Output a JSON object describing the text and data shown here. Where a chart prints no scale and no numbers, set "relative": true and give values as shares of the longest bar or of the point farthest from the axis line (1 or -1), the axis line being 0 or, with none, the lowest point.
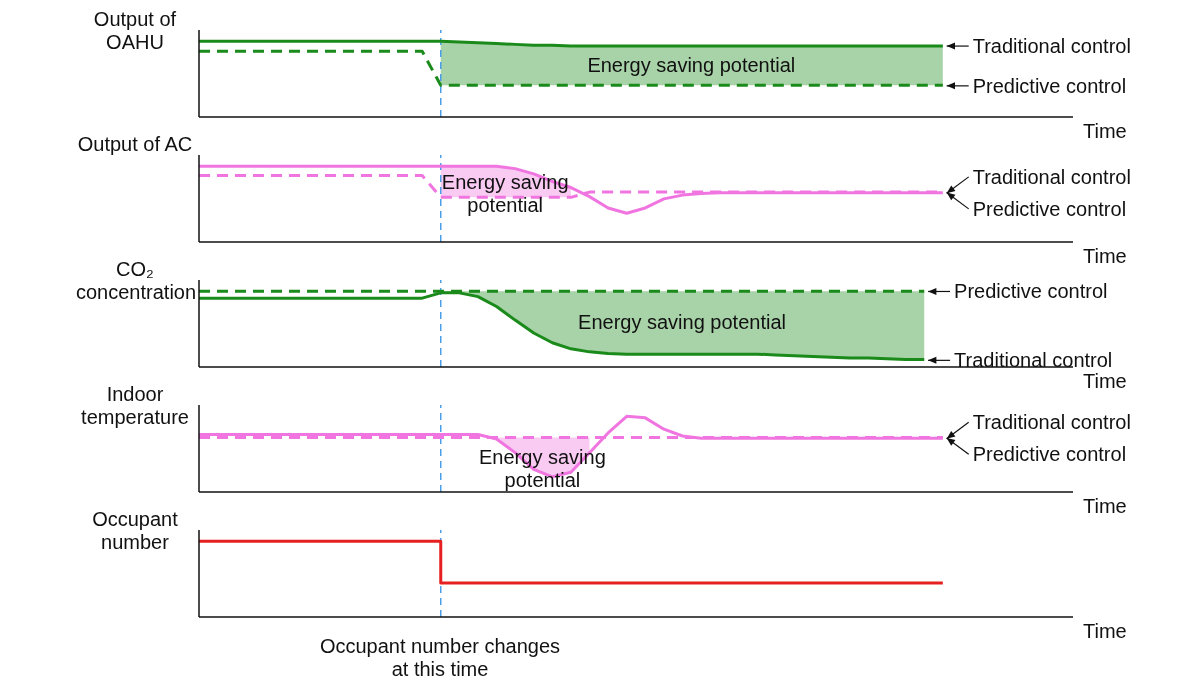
{
  "chart_data": [
    {
      "type": "line",
      "relative": true,
      "ylabel": "Output of OAHU",
      "xlabel": "Time",
      "annotations": [
        "Energy saving potential"
      ],
      "categories": [
        null,
        null,
        null,
        null,
        null,
        null,
        null,
        null,
        null,
        null,
        null,
        null,
        null,
        null,
        null,
        null,
        null,
        null,
        null,
        null,
        null,
        null,
        null,
        null,
        null,
        null,
        null,
        null,
        null,
        null,
        null,
        null,
        null,
        null,
        null,
        null,
        null,
        null,
        null,
        null,
        null,
        null,
        null,
        null,
        null,
        null,
        null,
        null
      ],
      "series": [
        {
          "name": "Traditional control",
          "color": "#1a8a1a",
          "line_style": "solid",
          "values": [
            1,
            1,
            1,
            1,
            1,
            1,
            1,
            1,
            1,
            1,
            1,
            1,
            1,
            1,
            0.99,
            0.98,
            0.97,
            0.96,
            0.95,
            0.95,
            0.94,
            0.94,
            0.94,
            0.94,
            0.94,
            0.94,
            0.94,
            0.94,
            0.94,
            0.94,
            0.94,
            0.94,
            0.94,
            0.94,
            0.94,
            0.94,
            0.94,
            0.94,
            0.94,
            0.94,
            0.94,
            null,
            null,
            null,
            null,
            null,
            null,
            null
          ],
          "lower": [
            null,
            null,
            null,
            null,
            null,
            null,
            null,
            null,
            null,
            null,
            null,
            null,
            null,
            0.42,
            0.42,
            0.42,
            0.42,
            0.42,
            0.42,
            0.42,
            0.42,
            0.42,
            0.42,
            0.42,
            0.42,
            0.42,
            0.42,
            0.42,
            0.42,
            0.42,
            0.42,
            0.42,
            0.42,
            0.42,
            0.42,
            0.42,
            0.42,
            0.42,
            0.42,
            0.42,
            0.42,
            null,
            null,
            null,
            null,
            null,
            null,
            null
          ],
          "upper": [
            null,
            null,
            null,
            null,
            null,
            null,
            null,
            null,
            null,
            null,
            null,
            null,
            null,
            1,
            0.99,
            0.98,
            0.97,
            0.96,
            0.95,
            0.95,
            0.94,
            0.94,
            0.94,
            0.94,
            0.94,
            0.94,
            0.94,
            0.94,
            0.94,
            0.94,
            0.94,
            0.94,
            0.94,
            0.94,
            0.94,
            0.94,
            0.94,
            0.94,
            0.94,
            0.94,
            0.94,
            null,
            null,
            null,
            null,
            null,
            null,
            null
          ]
        },
        {
          "name": "Predictive control",
          "color": "#1a8a1a",
          "line_style": "dashed",
          "values": [
            0.87,
            0.87,
            0.87,
            0.87,
            0.87,
            0.87,
            0.87,
            0.87,
            0.87,
            0.87,
            0.87,
            0.87,
            0.87,
            0.42,
            0.42,
            0.42,
            0.42,
            0.42,
            0.42,
            0.42,
            0.42,
            0.42,
            0.42,
            0.42,
            0.42,
            0.42,
            0.42,
            0.42,
            0.42,
            0.42,
            0.42,
            0.42,
            0.42,
            0.42,
            0.42,
            0.42,
            0.42,
            0.42,
            0.42,
            0.42,
            0.42,
            null,
            null,
            null,
            null,
            null,
            null,
            null
          ]
        }
      ]
    },
    {
      "type": "line",
      "relative": true,
      "ylabel": "Output of AC",
      "xlabel": "Time",
      "annotations": [
        "Energy saving potential"
      ],
      "categories": [
        null,
        null,
        null,
        null,
        null,
        null,
        null,
        null,
        null,
        null,
        null,
        null,
        null,
        null,
        null,
        null,
        null,
        null,
        null,
        null,
        null,
        null,
        null,
        null,
        null,
        null,
        null,
        null,
        null,
        null,
        null,
        null,
        null,
        null,
        null,
        null,
        null,
        null,
        null,
        null,
        null,
        null,
        null,
        null,
        null,
        null,
        null,
        null
      ],
      "series": [
        {
          "name": "Traditional control",
          "color": "#f075e0",
          "line_style": "solid",
          "values": [
            1,
            1,
            1,
            1,
            1,
            1,
            1,
            1,
            1,
            1,
            1,
            1,
            1,
            1,
            1,
            1,
            1,
            0.97,
            0.9,
            0.8,
            0.72,
            0.6,
            0.45,
            0.38,
            0.45,
            0.57,
            0.62,
            0.64,
            0.65,
            0.65,
            0.65,
            0.65,
            0.65,
            0.65,
            0.65,
            0.65,
            0.65,
            0.65,
            0.65,
            0.65,
            0.65,
            null,
            null,
            null,
            null,
            null,
            null,
            null
          ],
          "lower": [
            null,
            null,
            null,
            null,
            null,
            null,
            null,
            null,
            null,
            null,
            null,
            null,
            null,
            0.59,
            0.59,
            0.59,
            0.59,
            0.59,
            0.59,
            0.59,
            0.59,
            null,
            null,
            null,
            null,
            null,
            null,
            null,
            null,
            null,
            null,
            null,
            null,
            null,
            null,
            null,
            null,
            null,
            null,
            null,
            null,
            null,
            null,
            null,
            null,
            null,
            null,
            null
          ],
          "upper": [
            null,
            null,
            null,
            null,
            null,
            null,
            null,
            null,
            null,
            null,
            null,
            null,
            null,
            1,
            1,
            1,
            1,
            0.97,
            0.9,
            0.8,
            0.72,
            null,
            null,
            null,
            null,
            null,
            null,
            null,
            null,
            null,
            null,
            null,
            null,
            null,
            null,
            null,
            null,
            null,
            null,
            null,
            null,
            null,
            null,
            null,
            null,
            null,
            null,
            null
          ]
        },
        {
          "name": "Predictive control",
          "color": "#f075e0",
          "line_style": "dashed",
          "values": [
            0.88,
            0.88,
            0.88,
            0.88,
            0.88,
            0.88,
            0.88,
            0.88,
            0.88,
            0.88,
            0.88,
            0.88,
            0.88,
            0.59,
            0.59,
            0.59,
            0.59,
            0.59,
            0.59,
            0.59,
            0.59,
            0.66,
            0.66,
            0.66,
            0.66,
            0.66,
            0.66,
            0.66,
            0.66,
            0.66,
            0.66,
            0.66,
            0.66,
            0.66,
            0.66,
            0.66,
            0.66,
            0.66,
            0.66,
            0.66,
            0.66,
            null,
            null,
            null,
            null,
            null,
            null,
            null
          ]
        }
      ]
    },
    {
      "type": "line",
      "relative": true,
      "ylabel": "CO₂ concentration",
      "xlabel": "Time",
      "annotations": [
        "Energy saving potential"
      ],
      "categories": [
        null,
        null,
        null,
        null,
        null,
        null,
        null,
        null,
        null,
        null,
        null,
        null,
        null,
        null,
        null,
        null,
        null,
        null,
        null,
        null,
        null,
        null,
        null,
        null,
        null,
        null,
        null,
        null,
        null,
        null,
        null,
        null,
        null,
        null,
        null,
        null,
        null,
        null,
        null,
        null,
        null,
        null,
        null,
        null,
        null,
        null,
        null,
        null
      ],
      "series": [
        {
          "name": "Predictive control",
          "color": "#1a8a1a",
          "line_style": "dashed",
          "values": [
            1,
            1,
            1,
            1,
            1,
            1,
            1,
            1,
            1,
            1,
            1,
            1,
            1,
            1,
            1,
            1,
            1,
            1,
            1,
            1,
            1,
            1,
            1,
            1,
            1,
            1,
            1,
            1,
            1,
            1,
            1,
            1,
            1,
            1,
            1,
            1,
            1,
            1,
            1,
            1,
            null,
            null,
            null,
            null,
            null,
            null,
            null,
            null
          ]
        },
        {
          "name": "Traditional control",
          "color": "#1a8a1a",
          "line_style": "solid",
          "values": [
            0.91,
            0.91,
            0.91,
            0.91,
            0.91,
            0.91,
            0.91,
            0.91,
            0.91,
            0.91,
            0.91,
            0.91,
            0.91,
            0.98,
            0.98,
            0.93,
            0.8,
            0.62,
            0.45,
            0.32,
            0.24,
            0.2,
            0.18,
            0.17,
            0.17,
            0.17,
            0.17,
            0.17,
            0.17,
            0.17,
            0.17,
            0.16,
            0.15,
            0.14,
            0.13,
            0.12,
            0.12,
            0.11,
            0.1,
            0.1,
            null,
            null,
            null,
            null,
            null,
            null,
            null,
            null
          ],
          "lower": [
            null,
            null,
            null,
            null,
            null,
            null,
            null,
            null,
            null,
            null,
            null,
            null,
            null,
            0.98,
            0.98,
            0.93,
            0.8,
            0.62,
            0.45,
            0.32,
            0.24,
            0.2,
            0.18,
            0.17,
            0.17,
            0.17,
            0.17,
            0.17,
            0.17,
            0.17,
            0.17,
            0.16,
            0.15,
            0.14,
            0.13,
            0.12,
            0.12,
            0.11,
            0.1,
            0.1,
            null,
            null,
            null,
            null,
            null,
            null,
            null,
            null
          ],
          "upper": [
            null,
            null,
            null,
            null,
            null,
            null,
            null,
            null,
            null,
            null,
            null,
            null,
            null,
            1,
            1,
            1,
            1,
            1,
            1,
            1,
            1,
            1,
            1,
            1,
            1,
            1,
            1,
            1,
            1,
            1,
            1,
            1,
            1,
            1,
            1,
            1,
            1,
            1,
            1,
            1,
            null,
            null,
            null,
            null,
            null,
            null,
            null,
            null
          ]
        }
      ]
    },
    {
      "type": "line",
      "relative": true,
      "ylabel": "Indoor temperature",
      "xlabel": "Time",
      "annotations": [
        "Energy saving potential"
      ],
      "categories": [
        null,
        null,
        null,
        null,
        null,
        null,
        null,
        null,
        null,
        null,
        null,
        null,
        null,
        null,
        null,
        null,
        null,
        null,
        null,
        null,
        null,
        null,
        null,
        null,
        null,
        null,
        null,
        null,
        null,
        null,
        null,
        null,
        null,
        null,
        null,
        null,
        null,
        null,
        null,
        null,
        null,
        null,
        null,
        null,
        null,
        null,
        null,
        null
      ],
      "series": [
        {
          "name": "Traditional control",
          "color": "#f075e0",
          "line_style": "solid",
          "values": [
            0.76,
            0.76,
            0.76,
            0.76,
            0.76,
            0.76,
            0.76,
            0.76,
            0.76,
            0.76,
            0.76,
            0.76,
            0.76,
            0.76,
            0.76,
            0.76,
            0.7,
            0.52,
            0.3,
            0.2,
            0.26,
            0.52,
            0.78,
            1,
            0.98,
            0.83,
            0.74,
            0.71,
            0.71,
            0.71,
            0.71,
            0.71,
            0.71,
            0.71,
            0.71,
            0.71,
            0.71,
            0.71,
            0.71,
            0.71,
            0.71,
            null,
            null,
            null,
            null,
            null,
            null,
            null
          ],
          "lower": [
            null,
            null,
            null,
            null,
            null,
            null,
            null,
            null,
            null,
            null,
            null,
            null,
            null,
            null,
            null,
            null,
            0.7,
            0.52,
            0.3,
            0.2,
            0.26,
            0.52,
            null,
            null,
            null,
            null,
            null,
            null,
            null,
            null,
            null,
            null,
            null,
            null,
            null,
            null,
            null,
            null,
            null,
            null,
            null,
            null,
            null,
            null,
            null,
            null,
            null,
            null
          ],
          "upper": [
            null,
            null,
            null,
            null,
            null,
            null,
            null,
            null,
            null,
            null,
            null,
            null,
            null,
            null,
            null,
            null,
            0.72,
            0.72,
            0.72,
            0.72,
            0.72,
            0.72,
            null,
            null,
            null,
            null,
            null,
            null,
            null,
            null,
            null,
            null,
            null,
            null,
            null,
            null,
            null,
            null,
            null,
            null,
            null,
            null,
            null,
            null,
            null,
            null,
            null,
            null
          ]
        },
        {
          "name": "Predictive control",
          "color": "#f075e0",
          "line_style": "dashed",
          "values": [
            0.72,
            0.72,
            0.72,
            0.72,
            0.72,
            0.72,
            0.72,
            0.72,
            0.72,
            0.72,
            0.72,
            0.72,
            0.72,
            0.72,
            0.72,
            0.72,
            0.72,
            0.72,
            0.72,
            0.72,
            0.72,
            0.72,
            0.72,
            0.72,
            0.72,
            0.72,
            0.72,
            0.72,
            0.72,
            0.72,
            0.72,
            0.72,
            0.72,
            0.72,
            0.72,
            0.72,
            0.72,
            0.72,
            0.72,
            0.72,
            0.72,
            null,
            null,
            null,
            null,
            null,
            null,
            null
          ]
        }
      ]
    },
    {
      "type": "step",
      "relative": true,
      "ylabel": "Occupant number",
      "xlabel": "Time",
      "annotations": [
        "Occupant number changes at this time"
      ],
      "categories": [
        null,
        null,
        null,
        null,
        null,
        null,
        null,
        null,
        null,
        null,
        null,
        null,
        null,
        null,
        null,
        null,
        null,
        null,
        null,
        null,
        null,
        null,
        null,
        null,
        null,
        null,
        null,
        null,
        null,
        null,
        null,
        null,
        null,
        null,
        null,
        null,
        null,
        null,
        null,
        null,
        null,
        null,
        null,
        null,
        null,
        null,
        null,
        null
      ],
      "series": [
        {
          "color": "#e62020",
          "line_style": "solid",
          "values": [
            1,
            1,
            1,
            1,
            1,
            1,
            1,
            1,
            1,
            1,
            1,
            1,
            1,
            0.45,
            0.45,
            0.45,
            0.45,
            0.45,
            0.45,
            0.45,
            0.45,
            0.45,
            0.45,
            0.45,
            0.45,
            0.45,
            0.45,
            0.45,
            0.45,
            0.45,
            0.45,
            0.45,
            0.45,
            0.45,
            0.45,
            0.45,
            0.45,
            0.45,
            0.45,
            0.45,
            0.45,
            null,
            null,
            null,
            null,
            null,
            null,
            null
          ]
        }
      ]
    }
  ]
}
